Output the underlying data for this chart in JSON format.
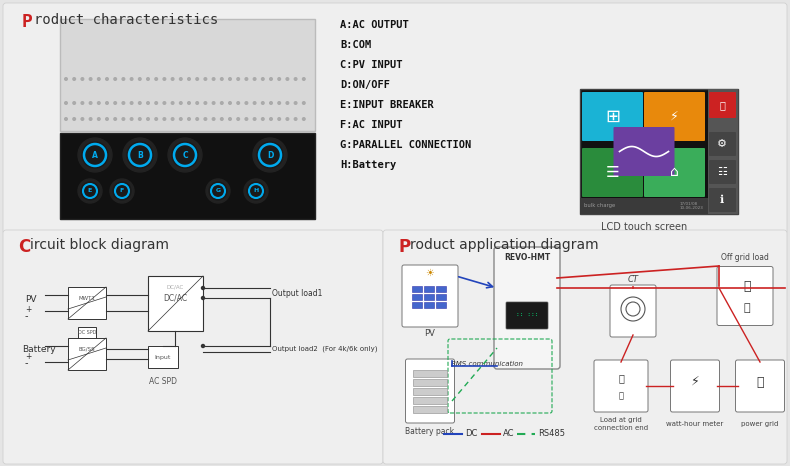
{
  "bg_color": "#e5e5e5",
  "panel_bg": "#efefef",
  "title1_P": "P",
  "title1_rest": "roduct characteristics",
  "title2_P": "C",
  "title2_rest": "ircuit block diagram",
  "title3_P": "P",
  "title3_rest": "roduct application diagram",
  "labels": [
    "A:AC OUTPUT",
    "B:COM",
    "C:PV INPUT",
    "D:ON/OFF",
    "E:INPUT BREAKER",
    "F:AC INPUT",
    "G:PARALLEL CONNECTION",
    "H:Battery"
  ],
  "lcd_caption": "LCD touch screen",
  "lcd_bg": "#111111",
  "lcd_tile1": "#1ab3d5",
  "lcd_tile2": "#e8890c",
  "lcd_tile3": "#cc2222",
  "lcd_tile4": "#2a8c3c",
  "lcd_tile5": "#3aad5a",
  "lcd_tile_mid": "#6b3fa0",
  "lcd_side_bg": "#666666",
  "dc_color": "#2244bb",
  "ac_color": "#cc2222",
  "rs_color": "#22aa55",
  "legend_dc": "DC",
  "legend_ac": "AC",
  "legend_rs": "RS485",
  "line_color": "#333333",
  "divider_color": "#cccccc"
}
